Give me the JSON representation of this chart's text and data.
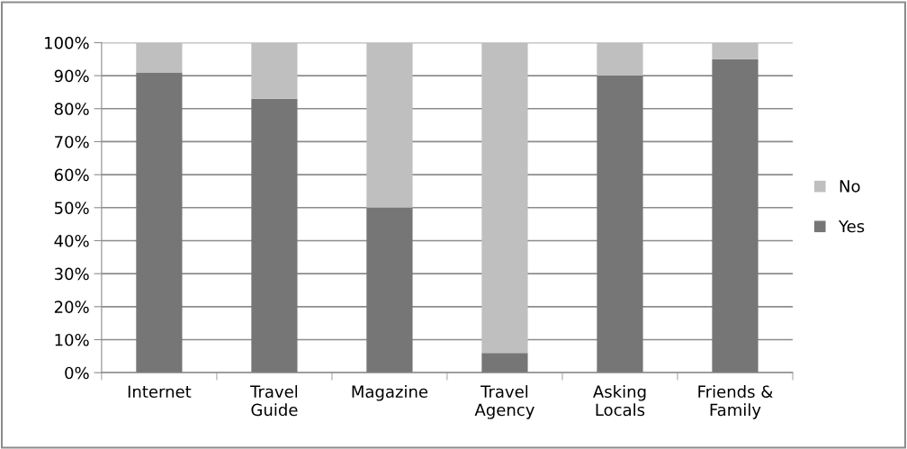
{
  "chart_data": {
    "type": "bar",
    "stacked": true,
    "categories": [
      "Internet",
      "Travel\nGuide",
      "Magazine",
      "Travel\nAgency",
      "Asking\nLocals",
      "Friends &\nFamily"
    ],
    "series": [
      {
        "name": "Yes",
        "color": "#767676",
        "values": [
          91,
          83,
          50,
          6,
          90,
          95
        ]
      },
      {
        "name": "No",
        "color": "#bfbfbf",
        "values": [
          9,
          17,
          50,
          94,
          10,
          5
        ]
      }
    ],
    "ylim": [
      0,
      100
    ],
    "yticks": [
      {
        "value": 0,
        "label": "0%"
      },
      {
        "value": 10,
        "label": "10%"
      },
      {
        "value": 20,
        "label": "20%"
      },
      {
        "value": 30,
        "label": "30%"
      },
      {
        "value": 40,
        "label": "40%"
      },
      {
        "value": 50,
        "label": "50%"
      },
      {
        "value": 60,
        "label": "60%"
      },
      {
        "value": 70,
        "label": "70%"
      },
      {
        "value": 80,
        "label": "80%"
      },
      {
        "value": 90,
        "label": "90%"
      },
      {
        "value": 100,
        "label": "100%"
      }
    ],
    "grid": "y",
    "legend": "right"
  }
}
